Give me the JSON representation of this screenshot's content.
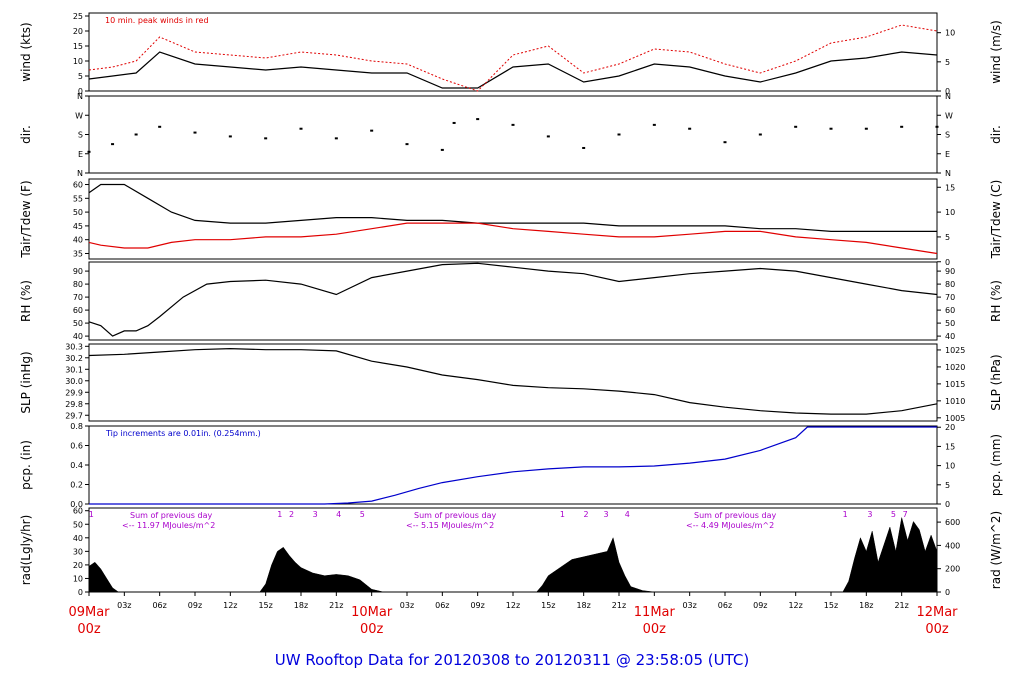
{
  "title": "UW Rooftop Data for 20120308  to  20120311 @ 23:58:05  (UTC)",
  "colors": {
    "black": "#000000",
    "red": "#e00000",
    "blue": "#0000cc",
    "purple": "#aa00cc"
  },
  "x_ticks": [
    "03z",
    "06z",
    "09z",
    "12z",
    "15z",
    "18z",
    "21z",
    "03z",
    "06z",
    "09z",
    "12z",
    "15z",
    "18z",
    "21z",
    "03z",
    "06z",
    "09z",
    "12z",
    "15z",
    "18z",
    "21z"
  ],
  "date_labels": [
    {
      "date": "09Mar",
      "hour": "00z"
    },
    {
      "date": "10Mar",
      "hour": "00z"
    },
    {
      "date": "11Mar",
      "hour": "00z"
    },
    {
      "date": "12Mar",
      "hour": "00z"
    }
  ],
  "chart_data": [
    {
      "id": "wind",
      "type": "line",
      "ylabel_left": "wind (kts)",
      "ylabel_right": "wind (m/s)",
      "ylim": [
        0,
        26
      ],
      "left_ticks": [
        "0",
        "5",
        "10",
        "15",
        "20",
        "25"
      ],
      "right_ticks": [
        "0",
        "5",
        "10"
      ],
      "annotation": "10 min. peak winds in red",
      "x_hours": [
        0,
        2,
        4,
        6,
        9,
        12,
        15,
        18,
        21,
        24,
        27,
        30,
        33,
        36,
        39,
        42,
        45,
        48,
        51,
        54,
        57,
        60,
        63,
        66,
        69,
        72
      ],
      "series": [
        {
          "name": "wind",
          "color": "#000000",
          "values": [
            4,
            5,
            6,
            13,
            9,
            8,
            7,
            8,
            7,
            6,
            6,
            1,
            1,
            8,
            9,
            3,
            5,
            9,
            8,
            5,
            3,
            6,
            10,
            11,
            13,
            12
          ]
        },
        {
          "name": "peak",
          "color": "#e00000",
          "values": [
            7,
            8,
            10,
            18,
            13,
            12,
            11,
            13,
            12,
            10,
            9,
            4,
            0,
            12,
            15,
            6,
            9,
            14,
            13,
            9,
            6,
            10,
            16,
            18,
            22,
            20
          ]
        }
      ]
    },
    {
      "id": "dir",
      "type": "scatter",
      "ylabel_left": "dir.",
      "ylabel_right": "dir.",
      "ylim": [
        0,
        4
      ],
      "left_ticks": [
        "N",
        "E",
        "S",
        "W",
        "N"
      ],
      "right_ticks": [
        "N",
        "E",
        "S",
        "W",
        "N"
      ],
      "x_hours": [
        0,
        2,
        4,
        6,
        9,
        12,
        15,
        18,
        21,
        24,
        27,
        30,
        31,
        33,
        36,
        39,
        42,
        45,
        48,
        51,
        54,
        57,
        60,
        63,
        66,
        69,
        72
      ],
      "series": [
        {
          "name": "direction",
          "color": "#000000",
          "values": [
            1.1,
            1.5,
            2.0,
            2.4,
            2.1,
            1.9,
            1.8,
            2.3,
            1.8,
            2.2,
            1.5,
            1.2,
            2.6,
            2.8,
            2.5,
            1.9,
            1.3,
            2.0,
            2.5,
            2.3,
            1.6,
            2.0,
            2.4,
            2.3,
            2.3,
            2.4,
            2.4
          ]
        }
      ]
    },
    {
      "id": "temp",
      "type": "line",
      "ylabel_left": "Tair/Tdew (F)",
      "ylabel_right": "Tair/Tdew (C)",
      "ylim": [
        33,
        62
      ],
      "left_ticks": [
        "35",
        "40",
        "45",
        "50",
        "55",
        "60"
      ],
      "right_ticks": [
        "0",
        "5",
        "10",
        "15"
      ],
      "x_hours": [
        0,
        1,
        3,
        5,
        7,
        9,
        12,
        15,
        18,
        21,
        24,
        27,
        30,
        33,
        36,
        39,
        42,
        45,
        48,
        51,
        54,
        57,
        60,
        63,
        66,
        69,
        72
      ],
      "series": [
        {
          "name": "Tair",
          "color": "#000000",
          "values": [
            57,
            60,
            60,
            55,
            50,
            47,
            46,
            46,
            47,
            48,
            48,
            47,
            47,
            46,
            46,
            46,
            46,
            45,
            45,
            45,
            45,
            44,
            44,
            43,
            43,
            43,
            43
          ]
        },
        {
          "name": "Tdew",
          "color": "#e00000",
          "values": [
            39,
            38,
            37,
            37,
            39,
            40,
            40,
            41,
            41,
            42,
            44,
            46,
            46,
            46,
            44,
            43,
            42,
            41,
            41,
            42,
            43,
            43,
            41,
            40,
            39,
            37,
            35
          ]
        }
      ]
    },
    {
      "id": "rh",
      "type": "line",
      "ylabel_left": "RH (%)",
      "ylabel_right": "RH (%)",
      "ylim": [
        37,
        97
      ],
      "left_ticks": [
        "40",
        "50",
        "60",
        "70",
        "80",
        "90"
      ],
      "right_ticks": [
        "40",
        "50",
        "60",
        "70",
        "80",
        "90"
      ],
      "x_hours": [
        0,
        1,
        2,
        3,
        4,
        5,
        6,
        8,
        10,
        12,
        15,
        18,
        21,
        24,
        27,
        30,
        33,
        36,
        39,
        42,
        45,
        48,
        51,
        54,
        57,
        60,
        63,
        66,
        69,
        72
      ],
      "series": [
        {
          "name": "RH",
          "color": "#000000",
          "values": [
            51,
            48,
            40,
            44,
            44,
            48,
            55,
            70,
            80,
            82,
            83,
            80,
            72,
            85,
            90,
            95,
            96,
            93,
            90,
            88,
            82,
            85,
            88,
            90,
            92,
            90,
            85,
            80,
            75,
            72
          ]
        }
      ]
    },
    {
      "id": "slp",
      "type": "line",
      "ylabel_left": "SLP (inHg)",
      "ylabel_right": "SLP (hPa)",
      "ylim": [
        29.65,
        30.32
      ],
      "left_ticks": [
        "29.7",
        "29.8",
        "29.9",
        "30.0",
        "30.1",
        "30.2",
        "30.3"
      ],
      "right_ticks": [
        "1005",
        "1010",
        "1015",
        "1020",
        "1025"
      ],
      "x_hours": [
        0,
        3,
        6,
        9,
        12,
        15,
        18,
        21,
        24,
        27,
        30,
        33,
        36,
        39,
        42,
        45,
        48,
        51,
        54,
        57,
        60,
        63,
        66,
        69,
        72
      ],
      "series": [
        {
          "name": "SLP",
          "color": "#000000",
          "values": [
            30.22,
            30.23,
            30.25,
            30.27,
            30.28,
            30.27,
            30.27,
            30.26,
            30.17,
            30.12,
            30.05,
            30.01,
            29.96,
            29.94,
            29.93,
            29.91,
            29.88,
            29.81,
            29.77,
            29.74,
            29.72,
            29.71,
            29.71,
            29.74,
            29.8
          ]
        }
      ]
    },
    {
      "id": "pcp",
      "type": "line",
      "ylabel_left": "pcp. (in)",
      "ylabel_right": "pcp. (mm)",
      "ylim": [
        0,
        0.8
      ],
      "left_ticks": [
        "0.0",
        "0.2",
        "0.4",
        "0.6",
        "0.8"
      ],
      "right_ticks": [
        "0",
        "5",
        "10",
        "15",
        "20"
      ],
      "annotation": "Tip increments are 0.01in. (0.254mm.)",
      "x_hours": [
        0,
        20,
        22,
        24,
        26,
        28,
        30,
        33,
        36,
        39,
        42,
        45,
        48,
        51,
        54,
        57,
        60,
        61,
        72
      ],
      "series": [
        {
          "name": "pcp",
          "color": "#0000cc",
          "values": [
            0,
            0,
            0.01,
            0.03,
            0.09,
            0.16,
            0.22,
            0.28,
            0.33,
            0.36,
            0.38,
            0.38,
            0.39,
            0.42,
            0.46,
            0.55,
            0.68,
            0.79,
            0.79
          ]
        }
      ]
    },
    {
      "id": "rad",
      "type": "area",
      "ylabel_left": "rad(Lgly/hr)",
      "ylabel_right": "rad (W/m^2)",
      "ylim": [
        0,
        62
      ],
      "left_ticks": [
        "0",
        "10",
        "20",
        "30",
        "40",
        "50",
        "60"
      ],
      "right_ticks": [
        "0",
        "200",
        "400",
        "600"
      ],
      "notes": [
        {
          "line1": "Sum of previous day",
          "line2": "<-- 11.97 MJoules/m^2"
        },
        {
          "line1": "Sum of previous day",
          "line2": "<-- 5.15 MJoules/m^2"
        },
        {
          "line1": "Sum of previous day",
          "line2": "<-- 4.49 MJoules/m^2"
        }
      ],
      "hour_marks": [
        {
          "h": 0.2,
          "t": "1"
        },
        {
          "h": 16.2,
          "t": "1"
        },
        {
          "h": 17.2,
          "t": "2"
        },
        {
          "h": 19.2,
          "t": "3"
        },
        {
          "h": 21.2,
          "t": "4"
        },
        {
          "h": 23.2,
          "t": "5"
        },
        {
          "h": 40.2,
          "t": "1"
        },
        {
          "h": 42.2,
          "t": "2"
        },
        {
          "h": 43.9,
          "t": "3"
        },
        {
          "h": 45.7,
          "t": "4"
        },
        {
          "h": 64.2,
          "t": "1"
        },
        {
          "h": 66.3,
          "t": "3"
        },
        {
          "h": 68.3,
          "t": "5"
        },
        {
          "h": 69.3,
          "t": "7"
        }
      ],
      "x_hours": [
        0,
        0.5,
        1,
        1.5,
        2,
        2.5,
        14.5,
        15,
        15.5,
        16,
        16.5,
        17,
        17.5,
        18,
        19,
        20,
        21,
        22,
        23,
        24,
        25,
        38,
        38.5,
        39,
        40,
        41,
        42,
        43,
        44,
        44.5,
        45,
        45.5,
        46,
        47,
        48,
        64,
        64.5,
        65,
        65.5,
        66,
        66.5,
        67,
        67.5,
        68,
        68.5,
        69,
        69.5,
        70,
        70.5,
        71,
        71.5,
        72
      ],
      "series": [
        {
          "name": "rad",
          "color": "#000000",
          "values": [
            19,
            22,
            17,
            10,
            3,
            0,
            0,
            6,
            20,
            30,
            33,
            27,
            22,
            18,
            14,
            12,
            13,
            12,
            9,
            2,
            0,
            0,
            5,
            12,
            18,
            24,
            26,
            28,
            30,
            40,
            22,
            12,
            4,
            1,
            0,
            0,
            8,
            25,
            40,
            30,
            45,
            22,
            35,
            48,
            30,
            55,
            38,
            52,
            46,
            30,
            42,
            30
          ]
        }
      ]
    }
  ]
}
